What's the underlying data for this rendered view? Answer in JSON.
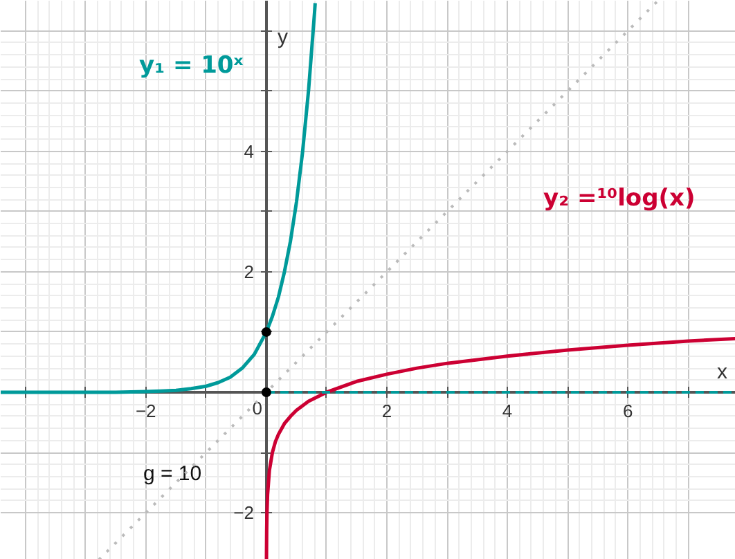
{
  "chart_data": {
    "type": "line",
    "xlabel": "x",
    "ylabel": "y",
    "xlim": [
      -4.41,
      7.79
    ],
    "ylim": [
      -2.78,
      6.5
    ],
    "xticks": [
      {
        "value": -4,
        "label": null
      },
      {
        "value": -3,
        "label": null
      },
      -2,
      {
        "value": -1,
        "label": null
      },
      0,
      {
        "value": 1,
        "label": null
      },
      2,
      {
        "value": 3,
        "label": null
      },
      4,
      {
        "value": 5,
        "label": null
      },
      6,
      {
        "value": 7,
        "label": null
      }
    ],
    "yticks": [
      -2,
      {
        "value": -1,
        "label": null
      },
      {
        "value": 0,
        "label": null
      },
      {
        "value": 1,
        "label": null
      },
      2,
      {
        "value": 3,
        "label": null
      },
      4,
      {
        "value": 5,
        "label": null
      },
      {
        "value": 6,
        "label": null
      }
    ],
    "grid": true,
    "annotations": [
      "g = 10"
    ],
    "series": [
      {
        "name": "y₁ = 10ˣ",
        "color": "#009a9a",
        "line_style": "solid",
        "x": [
          -4.41,
          -4,
          -3.5,
          -3,
          -2.5,
          -2,
          -1.75,
          -1.5,
          -1.25,
          -1,
          -0.8,
          -0.6,
          -0.4,
          -0.2,
          0,
          0.1,
          0.2,
          0.3,
          0.4,
          0.5,
          0.6,
          0.7,
          0.8,
          0.81
        ],
        "values": [
          0,
          0,
          0,
          0,
          0,
          0.01,
          0.02,
          0.03,
          0.06,
          0.1,
          0.16,
          0.25,
          0.4,
          0.63,
          1,
          1.26,
          1.58,
          2,
          2.51,
          3.16,
          3.98,
          5.01,
          6.31,
          6.46
        ]
      },
      {
        "name": "y₂ =¹⁰log(x)",
        "color": "#cc0033",
        "line_style": "solid",
        "x": [
          0.0017,
          0.002,
          0.005,
          0.01,
          0.02,
          0.05,
          0.1,
          0.15,
          0.2,
          0.3,
          0.4,
          0.5,
          0.7,
          1,
          1.5,
          2,
          2.5,
          3,
          4,
          5,
          6,
          7,
          7.79
        ],
        "values": [
          -2.77,
          -2.7,
          -2.3,
          -2,
          -1.7,
          -1.3,
          -1,
          -0.82,
          -0.7,
          -0.52,
          -0.4,
          -0.3,
          -0.15,
          0,
          0.18,
          0.3,
          0.4,
          0.48,
          0.6,
          0.7,
          0.78,
          0.85,
          0.89
        ]
      },
      {
        "color": "#bbbbbb",
        "line_style": "dotted",
        "x": [
          -2.78,
          6.5
        ],
        "values": [
          -2.78,
          6.5
        ]
      },
      {
        "color": "#009a9a",
        "line_style": "dashed",
        "x": [
          0,
          7.79
        ],
        "values": [
          0,
          0
        ]
      },
      {
        "type": "scatter",
        "marker": "circle",
        "color": "#000000",
        "x": [
          0,
          0
        ],
        "values": [
          1,
          0
        ]
      }
    ]
  }
}
